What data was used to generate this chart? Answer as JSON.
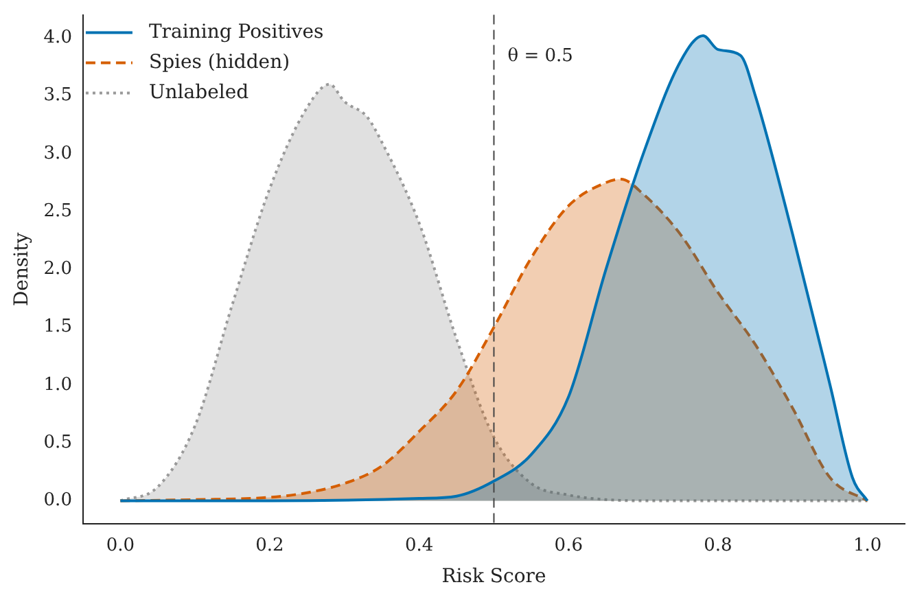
{
  "chart_data": {
    "type": "area",
    "xlabel": "Risk Score",
    "ylabel": "Density",
    "series": [
      {
        "name": "Training Positives",
        "color": "#0072b2",
        "line_style": "solid",
        "x": [
          0,
          0.2,
          0.4,
          0.45,
          0.5,
          0.55,
          0.6,
          0.65,
          0.7,
          0.75,
          0.78,
          0.8,
          0.83,
          0.85,
          0.9,
          0.95,
          0.98,
          1.0
        ],
        "values": [
          0,
          0,
          0.02,
          0.04,
          0.17,
          0.4,
          0.9,
          2.0,
          3.0,
          3.8,
          4.02,
          3.9,
          3.85,
          3.5,
          2.3,
          1.0,
          0.2,
          0
        ]
      },
      {
        "name": "Spies (hidden)",
        "color": "#d55e00",
        "line_style": "dashed",
        "x": [
          0,
          0.1,
          0.2,
          0.25,
          0.3,
          0.35,
          0.4,
          0.45,
          0.5,
          0.55,
          0.6,
          0.65,
          0.67,
          0.7,
          0.75,
          0.8,
          0.85,
          0.9,
          0.95,
          1.0
        ],
        "values": [
          0,
          0.01,
          0.03,
          0.07,
          0.15,
          0.3,
          0.6,
          0.95,
          1.5,
          2.1,
          2.55,
          2.75,
          2.78,
          2.65,
          2.3,
          1.8,
          1.35,
          0.8,
          0.2,
          0
        ]
      },
      {
        "name": "Unlabeled",
        "color": "#999999",
        "line_style": "dotted",
        "x": [
          0,
          0.05,
          0.1,
          0.15,
          0.2,
          0.25,
          0.28,
          0.3,
          0.33,
          0.35,
          0.4,
          0.45,
          0.5,
          0.55,
          0.6,
          0.65,
          0.7,
          0.8,
          1.0
        ],
        "values": [
          0,
          0.12,
          0.65,
          1.7,
          2.7,
          3.4,
          3.6,
          3.45,
          3.32,
          3.1,
          2.4,
          1.4,
          0.55,
          0.15,
          0.05,
          0.01,
          0,
          0,
          0
        ]
      }
    ],
    "xlim": [
      -0.05,
      1.05
    ],
    "ylim": [
      -0.2,
      4.2
    ],
    "xticks": [
      {
        "value": 0,
        "label": "0.0"
      },
      0.2,
      0.4,
      0.6,
      0.8,
      {
        "value": 1,
        "label": "1.0"
      }
    ],
    "yticks": [
      {
        "value": 0,
        "label": "0.0"
      },
      0.5,
      {
        "value": 1,
        "label": "1.0"
      },
      1.5,
      {
        "value": 2,
        "label": "2.0"
      },
      2.5,
      {
        "value": 3,
        "label": "3.0"
      },
      3.5,
      {
        "value": 4,
        "label": "4.0"
      }
    ],
    "ref_lines": [
      {
        "axis": "x",
        "value": 0.5,
        "label": "θ = 0.5",
        "color": "#444444",
        "line_style": "dashed"
      }
    ],
    "legend": "top left",
    "grid": false
  }
}
